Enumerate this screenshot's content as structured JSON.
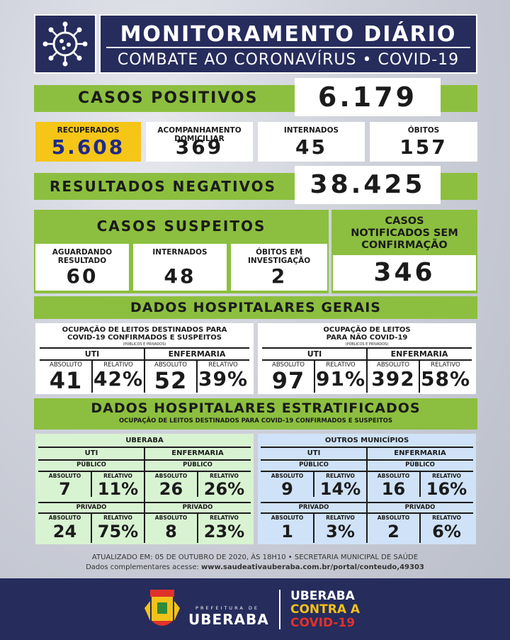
{
  "header": {
    "title": "MONITORAMENTO DIÁRIO",
    "subtitle": "COMBATE AO CORONAVÍRUS • COVID-19"
  },
  "casos_positivos": {
    "label": "CASOS POSITIVOS",
    "value": "6.179"
  },
  "summary": [
    {
      "label": "RECUPERADOS",
      "value": "5.608"
    },
    {
      "label": "ACOMPANHAMENTO DOMICILIAR",
      "value": "369"
    },
    {
      "label": "INTERNADOS",
      "value": "45"
    },
    {
      "label": "ÓBITOS",
      "value": "157"
    }
  ],
  "resultados_negativos": {
    "label": "RESULTADOS NEGATIVOS",
    "value": "38.425"
  },
  "casos_suspeitos": {
    "label": "CASOS SUSPEITOS",
    "items": [
      {
        "label": "AGUARDANDO RESULTADO",
        "value": "60"
      },
      {
        "label": "INTERNADOS",
        "value": "48"
      },
      {
        "label": "ÓBITOS EM INVESTIGAÇÃO",
        "value": "2"
      }
    ]
  },
  "notificados": {
    "label": "CASOS NOTIFICADOS SEM CONFIRMAÇÃO",
    "value": "346"
  },
  "hospitalares_gerais": {
    "title": "DADOS HOSPITALARES GERAIS",
    "left": {
      "title_1": "OCUPAÇÃO DE LEITOS DESTINADOS PARA",
      "title_2": "COVID-19 CONFIRMADOS E SUSPEITOS",
      "note": "(PÚBLICOS E PRIVADOS)",
      "uti": "UTI",
      "enfermaria": "ENFERMARIA",
      "col_abs": "ABSOLUTO",
      "col_rel": "RELATIVO",
      "uti_abs": "41",
      "uti_rel": "42%",
      "enf_abs": "52",
      "enf_rel": "39%"
    },
    "right": {
      "title_1": "OCUPAÇÃO DE LEITOS",
      "title_2": "PARA NÃO COVID-19",
      "note": "(PÚBLICOS E PRIVADOS)",
      "uti": "UTI",
      "enfermaria": "ENFERMARIA",
      "col_abs": "ABSOLUTO",
      "col_rel": "RELATIVO",
      "uti_abs": "97",
      "uti_rel": "91%",
      "enf_abs": "392",
      "enf_rel": "58%"
    }
  },
  "estratificados": {
    "title": "DADOS HOSPITALARES ESTRATIFICADOS",
    "subtitle": "OCUPAÇÃO DE LEITOS DESTINADOS PARA COVID-19 CONFIRMADOS E SUSPEITOS",
    "uberaba": {
      "title": "UBERABA",
      "uti": "UTI",
      "enfermaria": "ENFERMARIA",
      "publico": "PÚBLICO",
      "privado": "PRIVADO",
      "abs": "ABSOLUTO",
      "rel": "RELATIVO",
      "uti_pub_abs": "7",
      "uti_pub_rel": "11%",
      "enf_pub_abs": "26",
      "enf_pub_rel": "26%",
      "uti_pri_abs": "24",
      "uti_pri_rel": "75%",
      "enf_pri_abs": "8",
      "enf_pri_rel": "23%"
    },
    "outros": {
      "title": "OUTROS MUNICÍPIOS",
      "uti": "UTI",
      "enfermaria": "ENFERMARIA",
      "publico": "PÚBLICO",
      "privado": "PRIVADO",
      "abs": "ABSOLUTO",
      "rel": "RELATIVO",
      "uti_pub_abs": "9",
      "uti_pub_rel": "14%",
      "enf_pub_abs": "16",
      "enf_pub_rel": "16%",
      "uti_pri_abs": "1",
      "uti_pri_rel": "3%",
      "enf_pri_abs": "2",
      "enf_pri_rel": "6%"
    }
  },
  "footer": {
    "line1": "ATUALIZADO EM: 05 DE OUTUBRO DE 2020, ÀS 18H10 • SECRETARIA MUNICIPAL DE SAÚDE",
    "line2_prefix": "Dados complementares acesse:",
    "line2_url": "www.saudeativauberaba.com.br/portal/conteudo,49303"
  },
  "brand": {
    "prefeitura": "PREFEITURA DE",
    "city": "UBERABA",
    "slogan_1": "UBERABA",
    "slogan_2": "CONTRA A",
    "slogan_3": "COVID-19"
  },
  "colors": {
    "navy": "#262c5c",
    "green": "#8cbf3f",
    "yellow": "#f5c518",
    "blue_number": "#1f2a8a",
    "light_green": "#d8f3d2",
    "light_blue": "#cfe2f7",
    "slogan_yellow": "#f2c21a",
    "slogan_red": "#e0322a"
  }
}
